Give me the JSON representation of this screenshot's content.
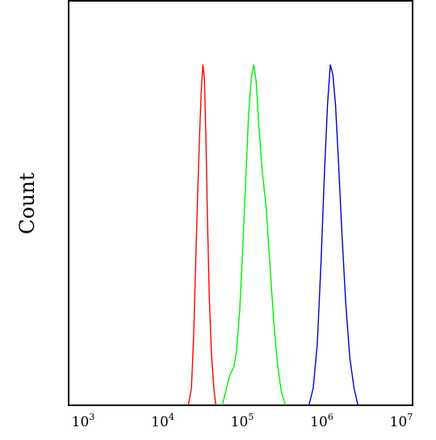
{
  "chart_data": {
    "type": "line",
    "title": "",
    "xlabel": "",
    "ylabel": "Count",
    "x_scale": "log",
    "xlim": [
      1000,
      10000000
    ],
    "ylim": [
      0,
      1.0
    ],
    "grid": false,
    "x_ticks": [
      {
        "base": "10",
        "exp": "3",
        "value": 1000
      },
      {
        "base": "10",
        "exp": "4",
        "value": 10000
      },
      {
        "base": "10",
        "exp": "5",
        "value": 100000
      },
      {
        "base": "10",
        "exp": "6",
        "value": 1000000
      },
      {
        "base": "10",
        "exp": "7",
        "value": 10000000
      }
    ],
    "series": [
      {
        "color": "#ff0000",
        "points": [
          [
            21000,
            0
          ],
          [
            23000,
            0.05
          ],
          [
            24500,
            0.2
          ],
          [
            26000,
            0.42
          ],
          [
            27500,
            0.62
          ],
          [
            29000,
            0.78
          ],
          [
            30500,
            0.92
          ],
          [
            32000,
            1.0
          ],
          [
            33500,
            0.96
          ],
          [
            35000,
            0.78
          ],
          [
            36500,
            0.55
          ],
          [
            38500,
            0.32
          ],
          [
            41000,
            0.15
          ],
          [
            44000,
            0.05
          ],
          [
            46500,
            0
          ]
        ]
      },
      {
        "color": "#00ee00",
        "points": [
          [
            56000,
            0
          ],
          [
            62000,
            0.04
          ],
          [
            70000,
            0.09
          ],
          [
            78000,
            0.11
          ],
          [
            85000,
            0.16
          ],
          [
            93000,
            0.28
          ],
          [
            101000,
            0.45
          ],
          [
            110000,
            0.65
          ],
          [
            120000,
            0.85
          ],
          [
            130000,
            0.96
          ],
          [
            140000,
            1.0
          ],
          [
            150000,
            0.95
          ],
          [
            162000,
            0.82
          ],
          [
            180000,
            0.68
          ],
          [
            200000,
            0.58
          ],
          [
            222000,
            0.42
          ],
          [
            248000,
            0.25
          ],
          [
            278000,
            0.12
          ],
          [
            310000,
            0.04
          ],
          [
            350000,
            0
          ]
        ]
      },
      {
        "color": "#0000cc",
        "points": [
          [
            690000,
            0
          ],
          [
            780000,
            0.05
          ],
          [
            880000,
            0.18
          ],
          [
            980000,
            0.42
          ],
          [
            1080000,
            0.68
          ],
          [
            1180000,
            0.88
          ],
          [
            1280000,
            1.0
          ],
          [
            1380000,
            0.97
          ],
          [
            1490000,
            0.88
          ],
          [
            1620000,
            0.72
          ],
          [
            1800000,
            0.5
          ],
          [
            2000000,
            0.3
          ],
          [
            2250000,
            0.14
          ],
          [
            2550000,
            0.05
          ],
          [
            2850000,
            0
          ]
        ]
      }
    ]
  }
}
